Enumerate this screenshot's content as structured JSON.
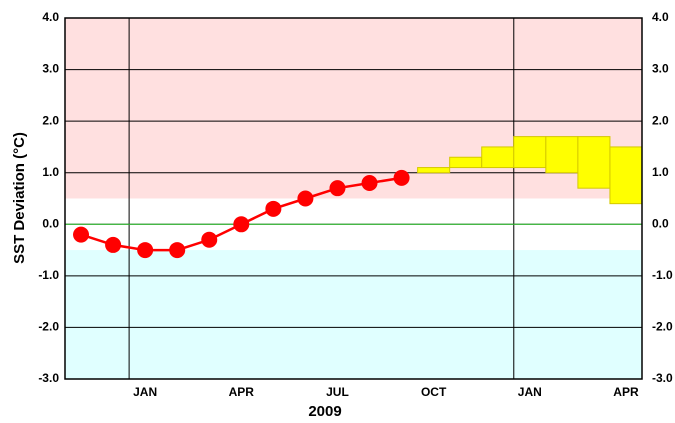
{
  "chart_data": {
    "type": "line",
    "xlabel": "2009",
    "ylabel": "SST Deviation (°C)",
    "categories": [
      null,
      null,
      "JAN",
      null,
      null,
      "APR",
      null,
      null,
      "JUL",
      null,
      null,
      "OCT",
      null,
      null,
      "JAN",
      null,
      null,
      "APR"
    ],
    "observed": {
      "color": "#ff0000",
      "values": [
        -0.2,
        -0.4,
        -0.5,
        -0.5,
        -0.3,
        0.0,
        0.3,
        0.5,
        0.7,
        0.8,
        0.9,
        null,
        null,
        null,
        null,
        null,
        null,
        null
      ]
    },
    "forecast": {
      "color": "#ffff00",
      "low": [
        null,
        null,
        null,
        null,
        null,
        null,
        null,
        null,
        null,
        null,
        null,
        1.0,
        1.1,
        1.1,
        1.1,
        1.0,
        0.7,
        0.4
      ],
      "high": [
        null,
        null,
        null,
        null,
        null,
        null,
        null,
        null,
        null,
        null,
        null,
        1.1,
        1.3,
        1.5,
        1.7,
        1.7,
        1.7,
        1.5
      ]
    },
    "bands": [
      {
        "from": 0.5,
        "to": 4.0,
        "color": "#ffe0e0"
      },
      {
        "from": -3.0,
        "to": -0.5,
        "color": "#e0ffff"
      }
    ],
    "zero_line_color": "#33cc33",
    "ylim": [
      -3.0,
      4.0
    ],
    "yticks": [
      {
        "value": -3,
        "label": "-3.0"
      },
      {
        "value": -2,
        "label": "-2.0"
      },
      {
        "value": -1,
        "label": "-1.0"
      },
      {
        "value": 0,
        "label": "0.0"
      },
      {
        "value": 1,
        "label": "1.0"
      },
      {
        "value": 2,
        "label": "2.0"
      },
      {
        "value": 3,
        "label": "3.0"
      },
      {
        "value": 4,
        "label": "4.0"
      }
    ],
    "grid": true
  }
}
